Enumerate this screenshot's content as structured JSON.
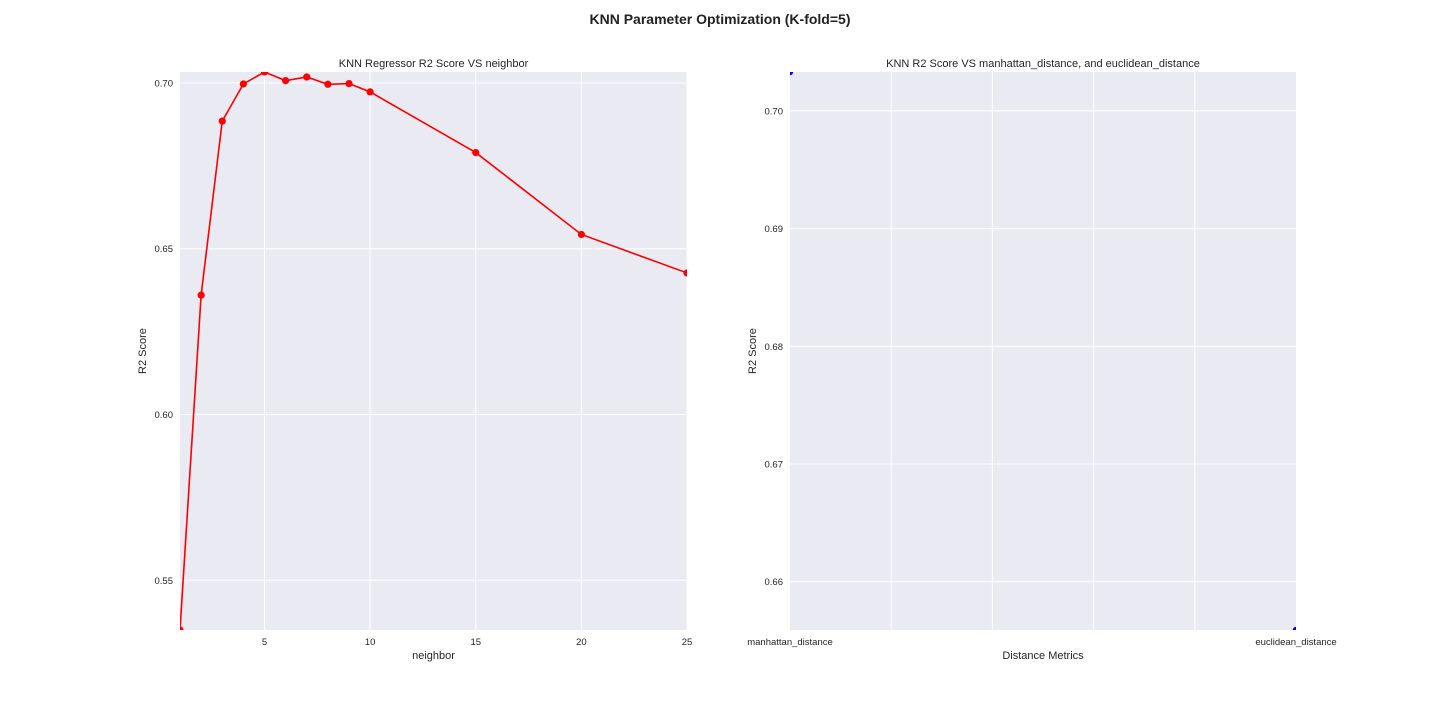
{
  "figure": {
    "suptitle": "KNN Parameter Optimization (K-fold=5)"
  },
  "chart_data": [
    {
      "type": "line",
      "title": "KNN Regressor R2 Score VS neighbor",
      "xlabel": "neighbor",
      "ylabel": "R2 Score",
      "x": [
        1,
        2,
        3,
        4,
        5,
        6,
        7,
        8,
        9,
        10,
        15,
        20,
        25
      ],
      "series": [
        {
          "values": [
            0.535,
            0.636,
            0.6885,
            0.6997,
            0.7033,
            0.7007,
            0.7018,
            0.6996,
            0.6998,
            0.6973,
            0.679,
            0.6543,
            0.6427
          ],
          "color": "#ff0000"
        }
      ],
      "xlim": [
        1,
        25
      ],
      "ylim": [
        0.535,
        0.7033
      ],
      "xticks": [
        5,
        10,
        15,
        20,
        25
      ],
      "xtick_labels": [
        "5",
        "10",
        "15",
        "20",
        "25"
      ],
      "yticks": [
        0.55,
        0.6,
        0.65,
        0.7
      ],
      "ytick_labels": [
        "0.55",
        "0.60",
        "0.65",
        "0.70"
      ],
      "grid": true,
      "background": "#eaeaf2"
    },
    {
      "type": "scatter",
      "title": "KNN R2 Score VS manhattan_distance, and euclidean_distance",
      "xlabel": "Distance Metrics",
      "ylabel": "R2 Score",
      "categories": [
        "manhattan_distance",
        "euclidean_distance"
      ],
      "series": [
        {
          "values": [
            0.7033,
            0.6559
          ],
          "color": "#0000ff"
        }
      ],
      "ylim": [
        0.6559,
        0.7033
      ],
      "yticks": [
        0.66,
        0.67,
        0.68,
        0.69,
        0.7
      ],
      "ytick_labels": [
        "0.66",
        "0.67",
        "0.68",
        "0.69",
        "0.70"
      ],
      "grid": true,
      "background": "#eaeaf2"
    }
  ]
}
